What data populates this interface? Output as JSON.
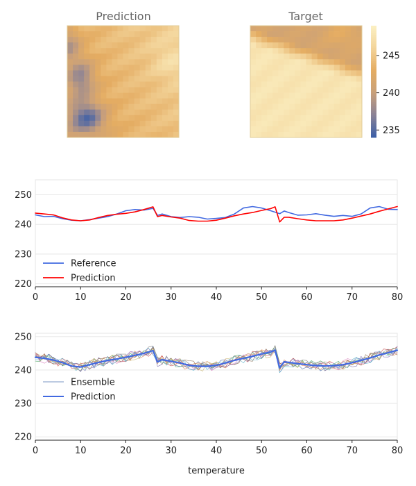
{
  "chart_data": [
    {
      "type": "heatmap",
      "title": "Prediction",
      "grid": {
        "rows": 20,
        "cols": 20
      },
      "color_range": [
        234,
        249
      ],
      "colormap": [
        "#3b5fa7",
        "#8a8296",
        "#c9a07a",
        "#e4ac62",
        "#f3d49a",
        "#fbf0c3"
      ]
    },
    {
      "type": "heatmap",
      "title": "Target",
      "grid": {
        "rows": 20,
        "cols": 20
      },
      "color_range": [
        234,
        249
      ],
      "colorbar": {
        "ticks": [
          235,
          240,
          245
        ]
      }
    },
    {
      "type": "line",
      "title": "",
      "xlabel": "",
      "ylabel": "",
      "xlim": [
        0,
        80
      ],
      "ylim": [
        219,
        255
      ],
      "xticks": [
        0,
        10,
        20,
        30,
        40,
        50,
        60,
        70,
        80
      ],
      "yticks": [
        220,
        230,
        240,
        250
      ],
      "legend_position": "lower-left",
      "series": [
        {
          "name": "Reference",
          "color": "#4169e1",
          "points": [
            [
              0,
              243.2
            ],
            [
              2,
              242.6
            ],
            [
              4,
              242.7
            ],
            [
              6,
              241.9
            ],
            [
              8,
              241.4
            ],
            [
              10,
              241.2
            ],
            [
              12,
              241.6
            ],
            [
              14,
              242.1
            ],
            [
              16,
              242.6
            ],
            [
              18,
              243.5
            ],
            [
              20,
              244.6
            ],
            [
              22,
              245.0
            ],
            [
              24,
              244.8
            ],
            [
              26,
              245.4
            ],
            [
              27,
              243.0
            ],
            [
              28,
              243.5
            ],
            [
              30,
              242.6
            ],
            [
              32,
              242.3
            ],
            [
              34,
              242.6
            ],
            [
              36,
              242.4
            ],
            [
              38,
              241.8
            ],
            [
              40,
              242.0
            ],
            [
              42,
              242.3
            ],
            [
              44,
              243.5
            ],
            [
              46,
              245.5
            ],
            [
              48,
              246.0
            ],
            [
              50,
              245.5
            ],
            [
              52,
              244.6
            ],
            [
              54,
              243.6
            ],
            [
              55,
              244.5
            ],
            [
              56,
              244.0
            ],
            [
              58,
              243.1
            ],
            [
              60,
              243.2
            ],
            [
              62,
              243.6
            ],
            [
              64,
              243.1
            ],
            [
              66,
              242.7
            ],
            [
              68,
              243.0
            ],
            [
              70,
              242.7
            ],
            [
              72,
              243.5
            ],
            [
              74,
              245.5
            ],
            [
              76,
              246.0
            ],
            [
              78,
              245.1
            ],
            [
              80,
              245.0
            ]
          ]
        },
        {
          "name": "Prediction",
          "color": "#ff0000",
          "points": [
            [
              0,
              243.8
            ],
            [
              2,
              243.5
            ],
            [
              4,
              243.2
            ],
            [
              6,
              242.2
            ],
            [
              8,
              241.5
            ],
            [
              10,
              241.2
            ],
            [
              12,
              241.5
            ],
            [
              14,
              242.3
            ],
            [
              16,
              243.0
            ],
            [
              18,
              243.4
            ],
            [
              20,
              243.7
            ],
            [
              22,
              244.2
            ],
            [
              24,
              245.0
            ],
            [
              26,
              245.9
            ],
            [
              27,
              242.6
            ],
            [
              28,
              243.0
            ],
            [
              30,
              242.5
            ],
            [
              32,
              242.1
            ],
            [
              34,
              241.3
            ],
            [
              36,
              241.1
            ],
            [
              38,
              241.1
            ],
            [
              40,
              241.4
            ],
            [
              42,
              242.1
            ],
            [
              44,
              242.9
            ],
            [
              46,
              243.5
            ],
            [
              48,
              244.0
            ],
            [
              50,
              244.7
            ],
            [
              52,
              245.3
            ],
            [
              53,
              245.9
            ],
            [
              54,
              240.8
            ],
            [
              55,
              242.4
            ],
            [
              56,
              242.4
            ],
            [
              58,
              241.9
            ],
            [
              60,
              241.5
            ],
            [
              62,
              241.2
            ],
            [
              64,
              241.2
            ],
            [
              66,
              241.2
            ],
            [
              68,
              241.5
            ],
            [
              70,
              242.1
            ],
            [
              72,
              242.8
            ],
            [
              74,
              243.5
            ],
            [
              76,
              244.4
            ],
            [
              78,
              245.2
            ],
            [
              80,
              246.0
            ]
          ]
        }
      ]
    },
    {
      "type": "line",
      "title": "",
      "xlabel": "temperature",
      "ylabel": "",
      "xlim": [
        0,
        80
      ],
      "ylim": [
        219,
        251
      ],
      "xticks": [
        0,
        10,
        20,
        30,
        40,
        50,
        60,
        70,
        80
      ],
      "yticks": [
        220,
        230,
        240,
        250
      ],
      "legend_position": "lower-left",
      "ensemble": {
        "name": "Ensemble",
        "members": 10,
        "colors": [
          "#4c72b0",
          "#dd8452",
          "#55a868",
          "#c44e52",
          "#8172b3",
          "#937860",
          "#da8bc3",
          "#8c8c8c",
          "#ccb974",
          "#64b5cd"
        ],
        "spread": 1.5
      },
      "series": [
        {
          "name": "Prediction",
          "color": "#4169e1",
          "points": [
            [
              0,
              243.8
            ],
            [
              2,
              243.5
            ],
            [
              4,
              243.0
            ],
            [
              6,
              242.2
            ],
            [
              8,
              241.2
            ],
            [
              10,
              240.9
            ],
            [
              12,
              241.6
            ],
            [
              14,
              242.3
            ],
            [
              16,
              242.9
            ],
            [
              18,
              243.3
            ],
            [
              20,
              243.8
            ],
            [
              22,
              244.4
            ],
            [
              24,
              245.0
            ],
            [
              26,
              245.8
            ],
            [
              27,
              242.4
            ],
            [
              28,
              243.1
            ],
            [
              30,
              242.6
            ],
            [
              32,
              242.1
            ],
            [
              34,
              241.4
            ],
            [
              36,
              241.1
            ],
            [
              38,
              241.1
            ],
            [
              40,
              241.4
            ],
            [
              42,
              242.1
            ],
            [
              44,
              242.9
            ],
            [
              46,
              243.5
            ],
            [
              48,
              244.1
            ],
            [
              50,
              244.8
            ],
            [
              52,
              245.4
            ],
            [
              53,
              245.9
            ],
            [
              54,
              240.7
            ],
            [
              55,
              242.5
            ],
            [
              56,
              242.3
            ],
            [
              58,
              241.9
            ],
            [
              60,
              241.6
            ],
            [
              62,
              241.3
            ],
            [
              64,
              241.2
            ],
            [
              66,
              241.3
            ],
            [
              68,
              241.6
            ],
            [
              70,
              242.2
            ],
            [
              72,
              242.9
            ],
            [
              74,
              243.6
            ],
            [
              76,
              244.5
            ],
            [
              78,
              245.2
            ],
            [
              80,
              245.9
            ]
          ]
        }
      ]
    }
  ]
}
